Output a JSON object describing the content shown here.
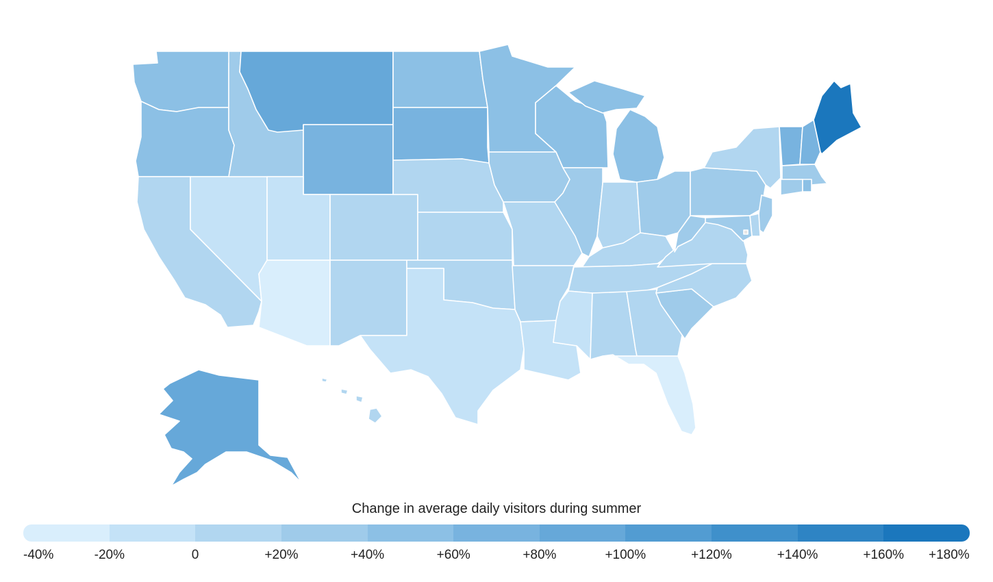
{
  "legend": {
    "title": "Change in average daily visitors during summer",
    "bins": [
      {
        "color": "#d9eefc"
      },
      {
        "color": "#c4e2f7"
      },
      {
        "color": "#b1d6f0"
      },
      {
        "color": "#9fcbea"
      },
      {
        "color": "#8cc0e5"
      },
      {
        "color": "#78b3df"
      },
      {
        "color": "#66a8d9"
      },
      {
        "color": "#529cd2"
      },
      {
        "color": "#3f90cb"
      },
      {
        "color": "#2e84c4"
      },
      {
        "color": "#1b77bd"
      }
    ],
    "ticks": [
      "-40%",
      "-20%",
      "0",
      "+20%",
      "+40%",
      "+60%",
      "+80%",
      "+100%",
      "+120%",
      "+140%",
      "+160%",
      "+180%"
    ]
  },
  "map_data": {
    "value_shown_as": "fill color bin",
    "states": [
      {
        "name": "Washington",
        "bin": 4
      },
      {
        "name": "Oregon",
        "bin": 4
      },
      {
        "name": "California",
        "bin": 2
      },
      {
        "name": "Nevada",
        "bin": 1
      },
      {
        "name": "Idaho",
        "bin": 3
      },
      {
        "name": "Montana",
        "bin": 6
      },
      {
        "name": "Wyoming",
        "bin": 5
      },
      {
        "name": "Utah",
        "bin": 1
      },
      {
        "name": "Arizona",
        "bin": 0
      },
      {
        "name": "Colorado",
        "bin": 2
      },
      {
        "name": "New Mexico",
        "bin": 2
      },
      {
        "name": "North Dakota",
        "bin": 4
      },
      {
        "name": "South Dakota",
        "bin": 5
      },
      {
        "name": "Nebraska",
        "bin": 2
      },
      {
        "name": "Kansas",
        "bin": 2
      },
      {
        "name": "Oklahoma",
        "bin": 2
      },
      {
        "name": "Texas",
        "bin": 1
      },
      {
        "name": "Minnesota",
        "bin": 4
      },
      {
        "name": "Iowa",
        "bin": 3
      },
      {
        "name": "Missouri",
        "bin": 2
      },
      {
        "name": "Arkansas",
        "bin": 2
      },
      {
        "name": "Louisiana",
        "bin": 1
      },
      {
        "name": "Wisconsin",
        "bin": 4
      },
      {
        "name": "Illinois",
        "bin": 3
      },
      {
        "name": "Michigan",
        "bin": 4
      },
      {
        "name": "Indiana",
        "bin": 2
      },
      {
        "name": "Ohio",
        "bin": 3
      },
      {
        "name": "Kentucky",
        "bin": 2
      },
      {
        "name": "Tennessee",
        "bin": 2
      },
      {
        "name": "Mississippi",
        "bin": 1
      },
      {
        "name": "Alabama",
        "bin": 2
      },
      {
        "name": "Georgia",
        "bin": 2
      },
      {
        "name": "Florida",
        "bin": 0
      },
      {
        "name": "South Carolina",
        "bin": 3
      },
      {
        "name": "North Carolina",
        "bin": 2
      },
      {
        "name": "Virginia",
        "bin": 2
      },
      {
        "name": "West Virginia",
        "bin": 3
      },
      {
        "name": "Pennsylvania",
        "bin": 3
      },
      {
        "name": "New York",
        "bin": 2
      },
      {
        "name": "Vermont",
        "bin": 5
      },
      {
        "name": "New Hampshire",
        "bin": 5
      },
      {
        "name": "Maine",
        "bin": 10
      },
      {
        "name": "Massachusetts",
        "bin": 3
      },
      {
        "name": "Connecticut",
        "bin": 3
      },
      {
        "name": "Rhode Island",
        "bin": 4
      },
      {
        "name": "New Jersey",
        "bin": 3
      },
      {
        "name": "Delaware",
        "bin": 2
      },
      {
        "name": "Maryland",
        "bin": 3
      },
      {
        "name": "District of Columbia",
        "bin": null
      },
      {
        "name": "Alaska",
        "bin": 6
      },
      {
        "name": "Hawaii",
        "bin": 2
      }
    ]
  }
}
